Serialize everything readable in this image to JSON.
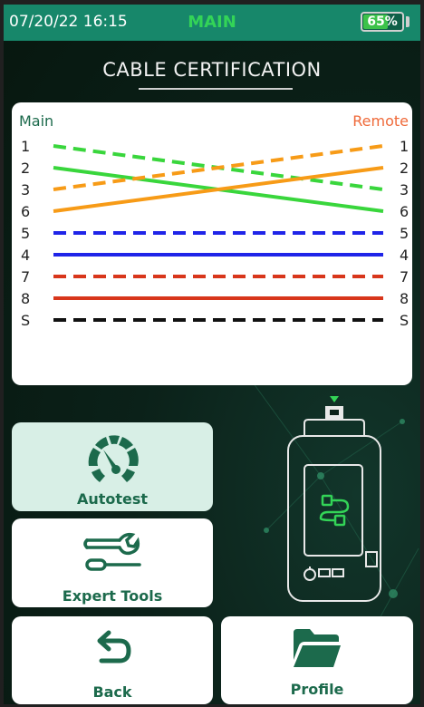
{
  "status_bar": {
    "datetime": "07/20/22 16:15",
    "title": "MAIN",
    "battery_percent": 65,
    "battery_label": "65%"
  },
  "page": {
    "title": "CABLE CERTIFICATION"
  },
  "wiremap": {
    "left_header": "Main",
    "right_header": "Remote",
    "left_pins": [
      "1",
      "2",
      "3",
      "6",
      "5",
      "4",
      "7",
      "8",
      "S"
    ],
    "right_pins": [
      "1",
      "2",
      "3",
      "6",
      "5",
      "4",
      "7",
      "8",
      "S"
    ],
    "wires": [
      {
        "from": "1",
        "to": "3",
        "color": "#39d63c",
        "style": "dashed"
      },
      {
        "from": "2",
        "to": "6",
        "color": "#39d63c",
        "style": "solid"
      },
      {
        "from": "3",
        "to": "1",
        "color": "#f79b17",
        "style": "dashed"
      },
      {
        "from": "6",
        "to": "2",
        "color": "#f79b17",
        "style": "solid"
      },
      {
        "from": "5",
        "to": "5",
        "color": "#1f24e8",
        "style": "dashed"
      },
      {
        "from": "4",
        "to": "4",
        "color": "#1f24e8",
        "style": "solid"
      },
      {
        "from": "7",
        "to": "7",
        "color": "#d8361b",
        "style": "dashed"
      },
      {
        "from": "8",
        "to": "8",
        "color": "#d8361b",
        "style": "solid"
      },
      {
        "from": "S",
        "to": "S",
        "color": "#111111",
        "style": "dashed"
      }
    ],
    "colors": {
      "left_header": "#1c6a4c",
      "right_header": "#ef6a3a",
      "pin_text": "#222222"
    }
  },
  "buttons": {
    "autotest": {
      "label": "Autotest",
      "icon": "speedometer-icon",
      "active": true
    },
    "expert_tools": {
      "label": "Expert Tools",
      "icon": "wrench-tools-icon",
      "active": false
    },
    "back": {
      "label": "Back",
      "icon": "back-arrow-icon",
      "active": false
    },
    "profile": {
      "label": "Profile",
      "icon": "folder-icon",
      "active": false
    }
  },
  "device": {
    "icon": "cable-tester-device-icon"
  },
  "colors": {
    "status_bar": "#17876a",
    "brand_green": "#1c6a4c",
    "title_green": "#33d457",
    "background": "#0b2119"
  }
}
